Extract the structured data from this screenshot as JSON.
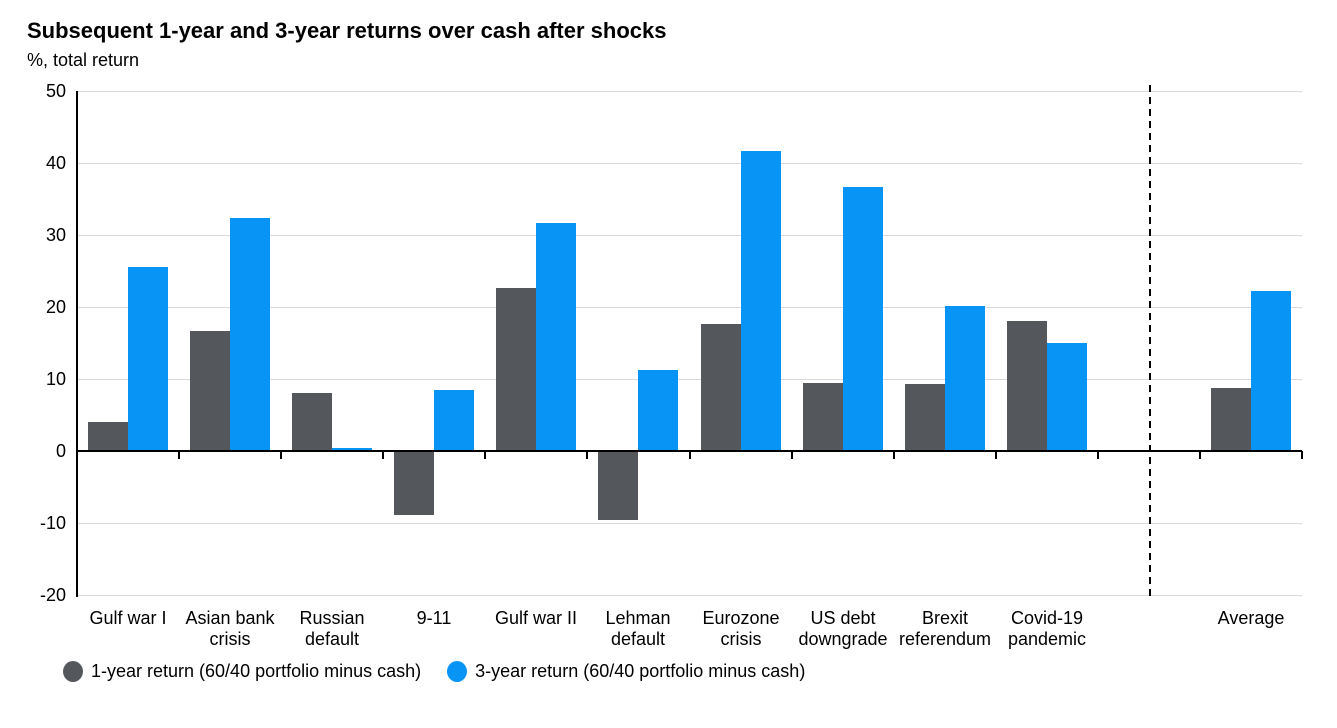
{
  "title": "Subsequent 1-year and 3-year returns over cash after shocks",
  "subtitle": "%, total return",
  "colors": {
    "series_1yr": "#54585d",
    "series_3yr": "#0894f5",
    "gridline": "#d9d9d9",
    "axis": "#000000"
  },
  "legend": [
    {
      "label": "1-year return (60/40 portfolio minus cash)",
      "color": "#54585d"
    },
    {
      "label": "3-year return (60/40 portfolio minus cash)",
      "color": "#0894f5"
    }
  ],
  "chart_data": {
    "type": "bar",
    "title": "Subsequent 1-year and 3-year returns over cash after shocks",
    "units_label": "%, total return",
    "xlabel": "",
    "ylabel": "%, total return",
    "ylim": [
      -20,
      50
    ],
    "yticks": [
      50,
      40,
      30,
      20,
      10,
      0,
      -10,
      -20
    ],
    "grid": true,
    "legend_position": "bottom",
    "separator": {
      "style": "dashed-vertical-line",
      "before_category": "Average"
    },
    "categories": [
      "Gulf war I",
      "Asian bank crisis",
      "Russian default",
      "9-11",
      "Gulf war II",
      "Lehman default",
      "Eurozone crisis",
      "US debt downgrade",
      "Brexit referendum",
      "Covid-19 pandemic",
      "Average"
    ],
    "category_label_lines": [
      [
        "Gulf war I"
      ],
      [
        "Asian bank",
        "crisis"
      ],
      [
        "Russian",
        "default"
      ],
      [
        "9-11"
      ],
      [
        "Gulf war II"
      ],
      [
        "Lehman",
        "default"
      ],
      [
        "Eurozone",
        "crisis"
      ],
      [
        "US debt",
        "downgrade"
      ],
      [
        "Brexit",
        "referendum"
      ],
      [
        "Covid-19",
        "pandemic"
      ],
      [
        "Average"
      ]
    ],
    "series": [
      {
        "name": "1-year return (60/40 portfolio minus cash)",
        "color": "#54585d",
        "values": [
          4.0,
          16.7,
          8.0,
          -8.7,
          22.7,
          -9.5,
          17.7,
          9.5,
          9.3,
          18.0,
          8.8
        ]
      },
      {
        "name": "3-year return (60/40 portfolio minus cash)",
        "color": "#0894f5",
        "values": [
          25.5,
          32.3,
          0.4,
          8.5,
          31.7,
          11.2,
          41.6,
          36.7,
          20.1,
          15.0,
          22.2
        ]
      }
    ]
  }
}
